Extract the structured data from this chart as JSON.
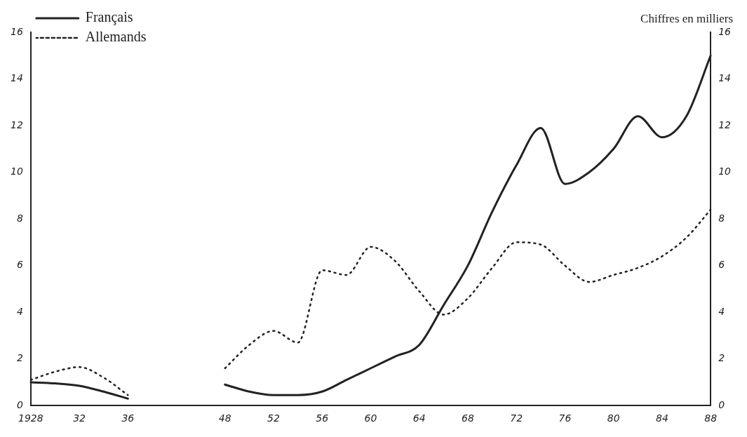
{
  "chart_data": {
    "type": "line",
    "y2label": "Chiffres en milliers",
    "categories": [
      "1928",
      null,
      "32",
      null,
      "36",
      null,
      null,
      null,
      "48",
      null,
      "52",
      null,
      "56",
      null,
      "60",
      null,
      "64",
      null,
      "68",
      null,
      "72",
      null,
      "76",
      null,
      "80",
      null,
      "84",
      null,
      "88"
    ],
    "series": [
      {
        "name": "Français",
        "color": "#222222",
        "line_style": "solid",
        "values": [
          1.0,
          0.95,
          0.85,
          0.6,
          0.3,
          null,
          null,
          null,
          0.9,
          0.6,
          0.45,
          0.45,
          0.6,
          1.1,
          1.6,
          2.1,
          2.6,
          4.3,
          6.0,
          8.3,
          10.3,
          11.9,
          9.5,
          10.0,
          11.0,
          12.4,
          11.5,
          12.4,
          15.0
        ]
      },
      {
        "name": "Allemands",
        "color": "#222222",
        "line_style": "dotted",
        "values": [
          1.1,
          1.45,
          1.65,
          1.2,
          0.45,
          null,
          null,
          null,
          1.6,
          2.6,
          3.2,
          2.7,
          5.8,
          5.6,
          6.8,
          6.2,
          4.9,
          3.9,
          4.6,
          5.9,
          7.0,
          6.9,
          6.0,
          5.3,
          5.6,
          5.9,
          6.4,
          7.2,
          8.4
        ]
      }
    ],
    "ylim": [
      0,
      16
    ],
    "yticks": [
      0,
      2,
      4,
      6,
      8,
      10,
      12,
      14,
      16
    ],
    "y2lim": [
      0,
      16
    ],
    "y2ticks": [
      0,
      2,
      4,
      6,
      8,
      10,
      12,
      14,
      16
    ],
    "grid": false,
    "legend": "top left",
    "marker": "none"
  }
}
